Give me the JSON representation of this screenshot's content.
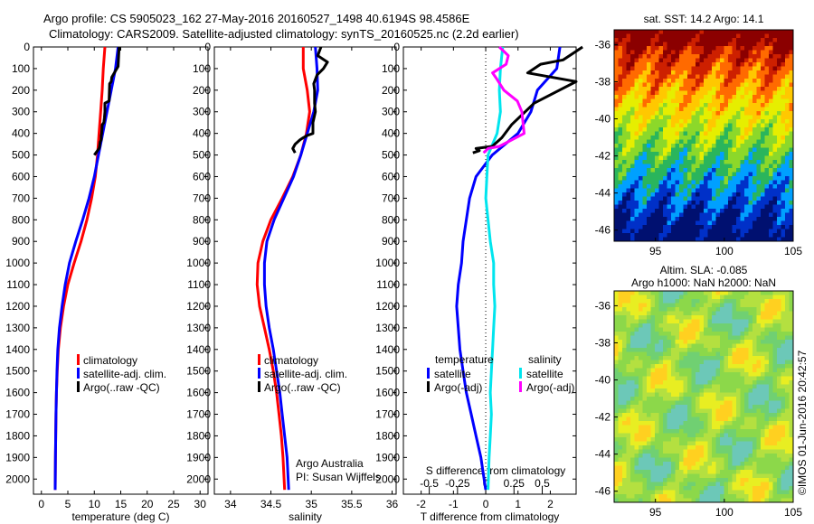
{
  "header": {
    "line1": "Argo profile: CS 5905023_162 27-May-2016 20160527_1498 40.6194S 98.4586E",
    "line2": "Climatology: CARS2009. Satellite-adjusted climatology: synTS_20160525.nc (2.2d earlier)"
  },
  "colors": {
    "climatology": "#ff0000",
    "satellite": "#0000ff",
    "argo": "#000000",
    "sat_salinity": "#00e5ee",
    "argo_salinity": "#ff00ff"
  },
  "chart_data": [
    {
      "type": "line",
      "xlabel": "temperature (deg C)",
      "xticks": [
        0,
        5,
        10,
        15,
        20,
        25,
        30
      ],
      "xlim": [
        -1.5,
        31.5
      ],
      "yticks": [
        0,
        100,
        200,
        300,
        400,
        500,
        600,
        700,
        800,
        900,
        1000,
        1100,
        1200,
        1300,
        1400,
        1500,
        1600,
        1700,
        1800,
        1900,
        2000
      ],
      "ylim": [
        2070,
        0
      ],
      "legend": [
        "climatology",
        "satellite-adj. clim.",
        "Argo(..raw -QC)"
      ],
      "series": [
        {
          "name": "climatology",
          "x": [
            12,
            11.7,
            11.5,
            11.2,
            10.9,
            10.6,
            10.2,
            9.5,
            8.6,
            7.5,
            6.2,
            5.0,
            4.2,
            3.6,
            3.2,
            3.0,
            2.85,
            2.75,
            2.7,
            2.65,
            2.6
          ],
          "y": [
            0,
            100,
            200,
            300,
            400,
            500,
            600,
            700,
            800,
            900,
            1000,
            1100,
            1200,
            1300,
            1400,
            1500,
            1600,
            1700,
            1800,
            1900,
            2050
          ]
        },
        {
          "name": "satellite-adj. clim.",
          "x": [
            14.5,
            14,
            13.2,
            12.4,
            11.6,
            10.8,
            10,
            9.0,
            7.8,
            6.5,
            5.3,
            4.5,
            3.9,
            3.4,
            3.1,
            2.95,
            2.85,
            2.75,
            2.7,
            2.65,
            2.6
          ],
          "y": [
            0,
            100,
            200,
            300,
            400,
            500,
            600,
            700,
            800,
            900,
            1000,
            1100,
            1200,
            1300,
            1400,
            1500,
            1600,
            1700,
            1800,
            1900,
            2050
          ]
        },
        {
          "name": "Argo(..raw -QC)",
          "x": [
            14.7,
            14.6,
            14.5,
            13.3,
            13.2,
            12.9,
            12.8,
            12.0,
            12.0,
            11.9,
            11.8,
            11.5,
            11.4,
            11.3,
            11.3,
            11.1,
            11.0,
            10.9,
            10.6,
            10.3,
            10.0
          ],
          "y": [
            0,
            40,
            90,
            140,
            160,
            170,
            250,
            260,
            300,
            330,
            350,
            360,
            400,
            410,
            430,
            440,
            460,
            470,
            480,
            490,
            500
          ]
        }
      ]
    },
    {
      "type": "line",
      "xlabel": "salinity",
      "xticks": [
        34,
        34.5,
        35,
        35.5,
        36
      ],
      "xlim": [
        33.8,
        36.05
      ],
      "yticks": [
        0,
        100,
        200,
        300,
        400,
        500,
        600,
        700,
        800,
        900,
        1000,
        1100,
        1200,
        1300,
        1400,
        1500,
        1600,
        1700,
        1800,
        1900,
        2000
      ],
      "ylim": [
        2070,
        0
      ],
      "legend": [
        "climatology",
        "satellite-adj. clim.",
        "Argo(..raw -QC)"
      ],
      "annotation": [
        "Argo Australia",
        "PI: Susan Wijffels"
      ],
      "series": [
        {
          "name": "climatology",
          "x": [
            34.9,
            34.9,
            34.95,
            34.98,
            34.94,
            34.87,
            34.77,
            34.64,
            34.5,
            34.4,
            34.34,
            34.33,
            34.36,
            34.42,
            34.48,
            34.53,
            34.57,
            34.6,
            34.63,
            34.65,
            34.67
          ],
          "y": [
            0,
            100,
            200,
            300,
            400,
            500,
            600,
            700,
            800,
            900,
            1000,
            1100,
            1200,
            1300,
            1400,
            1500,
            1600,
            1700,
            1800,
            1900,
            2050
          ]
        },
        {
          "name": "satellite-adj. clim.",
          "x": [
            35.05,
            35.07,
            35.08,
            35.03,
            34.95,
            34.87,
            34.78,
            34.66,
            34.54,
            34.45,
            34.42,
            34.42,
            34.44,
            34.48,
            34.53,
            34.57,
            34.61,
            34.64,
            34.67,
            34.7,
            34.72
          ],
          "y": [
            0,
            100,
            200,
            300,
            400,
            500,
            600,
            700,
            800,
            900,
            1000,
            1100,
            1200,
            1300,
            1400,
            1500,
            1600,
            1700,
            1800,
            1900,
            2050
          ]
        },
        {
          "name": "Argo(..raw -QC)",
          "x": [
            35.12,
            35.08,
            35.2,
            35.15,
            35.07,
            35.03,
            35.04,
            35.04,
            35.05,
            35.02,
            35.02,
            34.95,
            34.9,
            34.86,
            34.8,
            34.77,
            34.8
          ],
          "y": [
            0,
            40,
            70,
            100,
            130,
            170,
            200,
            260,
            300,
            350,
            400,
            410,
            420,
            430,
            450,
            470,
            490
          ]
        }
      ]
    },
    {
      "type": "line",
      "xlabel": "T difference from climatology",
      "xticks": [
        -2,
        -1,
        0,
        1,
        2
      ],
      "xlim": [
        -2.55,
        2.8
      ],
      "x2label": "S difference from climatology",
      "x2ticks": [
        -0.5,
        -0.25,
        0,
        0.25,
        0.5
      ],
      "x2lim": [
        -0.729,
        0.8
      ],
      "yticks": [
        0,
        100,
        200,
        300,
        400,
        500,
        600,
        700,
        800,
        900,
        1000,
        1100,
        1200,
        1300,
        1400,
        1500,
        1600,
        1700,
        1800,
        1900,
        2000
      ],
      "ylim": [
        2070,
        0
      ],
      "legend_groups": [
        "temperature",
        "salinity"
      ],
      "legend": [
        "satellite",
        "Argo(-adj)",
        "satellite",
        "Argo(-adj)"
      ],
      "series": [
        {
          "name": "temperature satellite",
          "axis": "T",
          "x": [
            2.3,
            2.2,
            1.6,
            1.4,
            1.0,
            0.2,
            -0.3,
            -0.5,
            -0.6,
            -0.7,
            -0.75,
            -0.85,
            -0.9,
            -0.85,
            -0.8,
            -0.7,
            -0.6,
            -0.45,
            -0.3,
            -0.15,
            0
          ],
          "y": [
            0,
            100,
            200,
            300,
            400,
            500,
            600,
            700,
            800,
            900,
            1000,
            1100,
            1200,
            1300,
            1400,
            1500,
            1600,
            1700,
            1800,
            1900,
            2050
          ]
        },
        {
          "name": "salinity satellite",
          "axis": "S",
          "x": [
            0.15,
            0.13,
            0.12,
            0.13,
            0.1,
            0.02,
            0.01,
            0.0,
            0.02,
            0.04,
            0.07,
            0.07,
            0.08,
            0.07,
            0.06,
            0.05,
            0.04,
            0.05,
            0.04,
            0.03,
            0.02
          ],
          "y": [
            0,
            100,
            200,
            300,
            400,
            500,
            600,
            700,
            800,
            900,
            1000,
            1100,
            1200,
            1300,
            1400,
            1500,
            1600,
            1700,
            1800,
            1900,
            2050
          ]
        },
        {
          "name": "temperature Argo(-adj)",
          "axis": "T",
          "x": [
            3.0,
            2.8,
            2.4,
            1.7,
            1.3,
            2.8,
            1.5,
            0.8,
            0.5,
            0.2,
            -0.3,
            -0.2,
            -0.4
          ],
          "y": [
            0,
            20,
            60,
            80,
            120,
            160,
            260,
            360,
            420,
            460,
            470,
            480,
            490
          ]
        },
        {
          "name": "salinity Argo(-adj)",
          "axis": "S",
          "x": [
            0.12,
            0.2,
            0.18,
            0.06,
            0.1,
            0.16,
            0.28,
            0.32,
            0.34,
            0.12,
            0.02,
            0.0,
            -0.02
          ],
          "y": [
            0,
            40,
            80,
            120,
            150,
            200,
            250,
            300,
            400,
            460,
            470,
            480,
            490
          ]
        }
      ]
    },
    {
      "type": "heatmap",
      "title": "sat. SST: 14.2 Argo: 14.1",
      "xticks": [
        95,
        100,
        105
      ],
      "xlim": [
        92,
        105
      ],
      "yticks": [
        -36,
        -38,
        -40,
        -42,
        -44,
        -46
      ],
      "ylim": [
        -46.6,
        -35.2
      ],
      "colors": [
        "#8b0000",
        "#cd2000",
        "#ff6a00",
        "#ffc800",
        "#e6ee00",
        "#8cd82a",
        "#2ab55c",
        "#00a0ff",
        "#0030c8",
        "#001070"
      ]
    },
    {
      "type": "heatmap",
      "title": "Altim. SLA: -0.085",
      "subtitle": "Argo h1000: NaN h2000: NaN",
      "xticks": [
        95,
        100,
        105
      ],
      "xlim": [
        92,
        105
      ],
      "yticks": [
        -36,
        -38,
        -40,
        -42,
        -44,
        -46
      ],
      "ylim": [
        -46.6,
        -35.2
      ],
      "colors": [
        "#e8ee22",
        "#b4e040",
        "#8cd84a",
        "#70d072",
        "#6cc8b8",
        "#ffd020"
      ]
    }
  ],
  "footer": {
    "credit": "©IMOS 01-Jun-2016 20:42:57"
  }
}
